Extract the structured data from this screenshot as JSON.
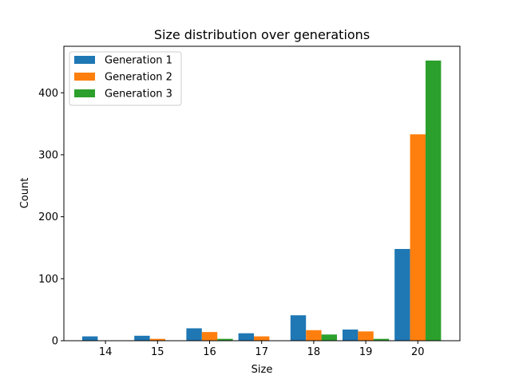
{
  "chart_data": {
    "type": "bar",
    "title": "Size distribution over generations",
    "xlabel": "Size",
    "ylabel": "Count",
    "categories": [
      "14",
      "15",
      "16",
      "17",
      "18",
      "19",
      "20"
    ],
    "ylim": [
      0,
      475
    ],
    "yticks": [
      0,
      100,
      200,
      300,
      400
    ],
    "series": [
      {
        "name": "Generation 1",
        "color": "#1f77b4",
        "values": [
          7,
          8,
          20,
          12,
          41,
          18,
          148
        ]
      },
      {
        "name": "Generation 2",
        "color": "#ff7f0e",
        "values": [
          0,
          3,
          14,
          7,
          17,
          15,
          333
        ]
      },
      {
        "name": "Generation 3",
        "color": "#2ca02c",
        "values": [
          0,
          0,
          3,
          0,
          10,
          3,
          452
        ]
      }
    ],
    "legend_position": "top-left",
    "grid": false
  }
}
